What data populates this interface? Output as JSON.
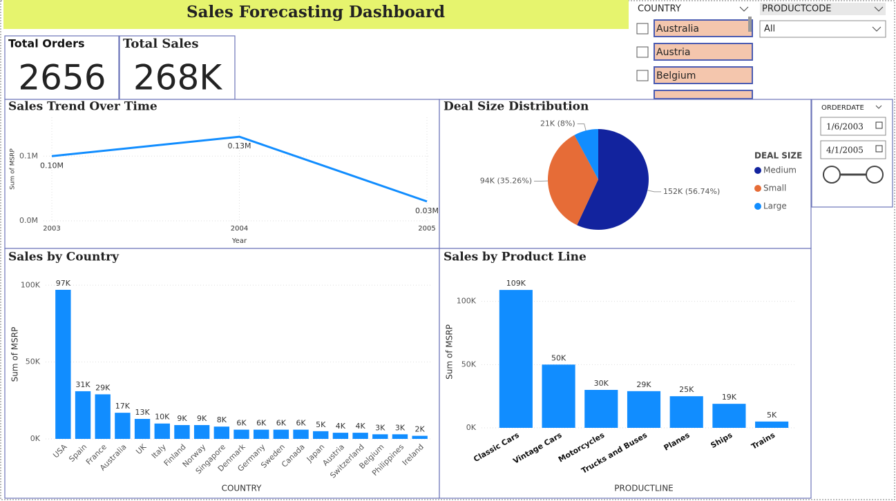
{
  "title": "Sales Forecasting Dashboard",
  "cards": [
    {
      "label": "Total Orders",
      "value": "2656"
    },
    {
      "label": "Total Sales",
      "value": "268K"
    }
  ],
  "slicers": {
    "country": {
      "label": "COUNTRY",
      "options": [
        "Australia",
        "Austria",
        "Belgium"
      ]
    },
    "productcode": {
      "label": "PRODUCTCODE",
      "selected": "All"
    },
    "orderdate": {
      "label": "ORDERDATE",
      "start": "1/6/2003",
      "end": "4/1/2005"
    }
  },
  "chart_data": [
    {
      "type": "line",
      "title": "Sales Trend Over Time",
      "x_label": "Year",
      "y_label": "Sum of MSRP",
      "x": [
        2003,
        2004,
        2005
      ],
      "values": [
        100000,
        130000,
        30000
      ],
      "value_labels": [
        "0.10M",
        "0.13M",
        "0.03M"
      ],
      "color": "#118dff",
      "xlim": [
        2003,
        2005
      ],
      "xticks": [
        2003,
        2004,
        2005
      ],
      "ylim": [
        0,
        160000
      ],
      "yticks": [
        {
          "value": 0,
          "label": "0.0M"
        },
        {
          "value": 100000,
          "label": "0.1M"
        }
      ],
      "grid": true
    },
    {
      "type": "pie",
      "title": "Deal Size Distribution",
      "legend_title": "DEAL SIZE",
      "categories": [
        "Medium",
        "Small",
        "Large"
      ],
      "values": [
        152000,
        94000,
        21000
      ],
      "value_labels": [
        "152K (56.74%)",
        "94K (35.26%)",
        "21K (8%)"
      ],
      "colors": [
        "#12239e",
        "#e66c37",
        "#118dff"
      ]
    },
    {
      "type": "bar",
      "title": "Sales by Country",
      "x_label": "COUNTRY",
      "y_label": "Sum of MSRP",
      "categories": [
        "USA",
        "Spain",
        "France",
        "Australia",
        "UK",
        "Italy",
        "Finland",
        "Norway",
        "Singapore",
        "Denmark",
        "Germany",
        "Sweden",
        "Canada",
        "Japan",
        "Austria",
        "Switzerland",
        "Belgium",
        "Philippines",
        "Ireland"
      ],
      "values": [
        97000,
        31000,
        29000,
        17000,
        13000,
        10000,
        9000,
        9000,
        8000,
        6000,
        6000,
        6000,
        6000,
        5000,
        4000,
        4000,
        3000,
        3000,
        2000
      ],
      "value_labels": [
        "97K",
        "31K",
        "29K",
        "17K",
        "13K",
        "10K",
        "9K",
        "9K",
        "8K",
        "6K",
        "6K",
        "6K",
        "6K",
        "5K",
        "4K",
        "4K",
        "3K",
        "3K",
        "2K"
      ],
      "color": "#118dff",
      "ylim": [
        0,
        110000
      ],
      "yticks": [
        {
          "value": 0,
          "label": "0K"
        },
        {
          "value": 50000,
          "label": "50K"
        },
        {
          "value": 100000,
          "label": "100K"
        }
      ],
      "grid": true
    },
    {
      "type": "bar",
      "title": "Sales by Product Line",
      "x_label": "PRODUCTLINE",
      "y_label": "Sum of MSRP",
      "categories": [
        "Classic Cars",
        "Vintage Cars",
        "Motorcycles",
        "Trucks and Buses",
        "Planes",
        "Ships",
        "Trains"
      ],
      "values": [
        109000,
        50000,
        30000,
        29000,
        25000,
        19000,
        5000
      ],
      "value_labels": [
        "109K",
        "50K",
        "30K",
        "29K",
        "25K",
        "19K",
        "5K"
      ],
      "color": "#118dff",
      "ylim": [
        0,
        120000
      ],
      "yticks": [
        {
          "value": 0,
          "label": "0K"
        },
        {
          "value": 50000,
          "label": "50K"
        },
        {
          "value": 100000,
          "label": "100K"
        }
      ],
      "grid": true
    }
  ]
}
